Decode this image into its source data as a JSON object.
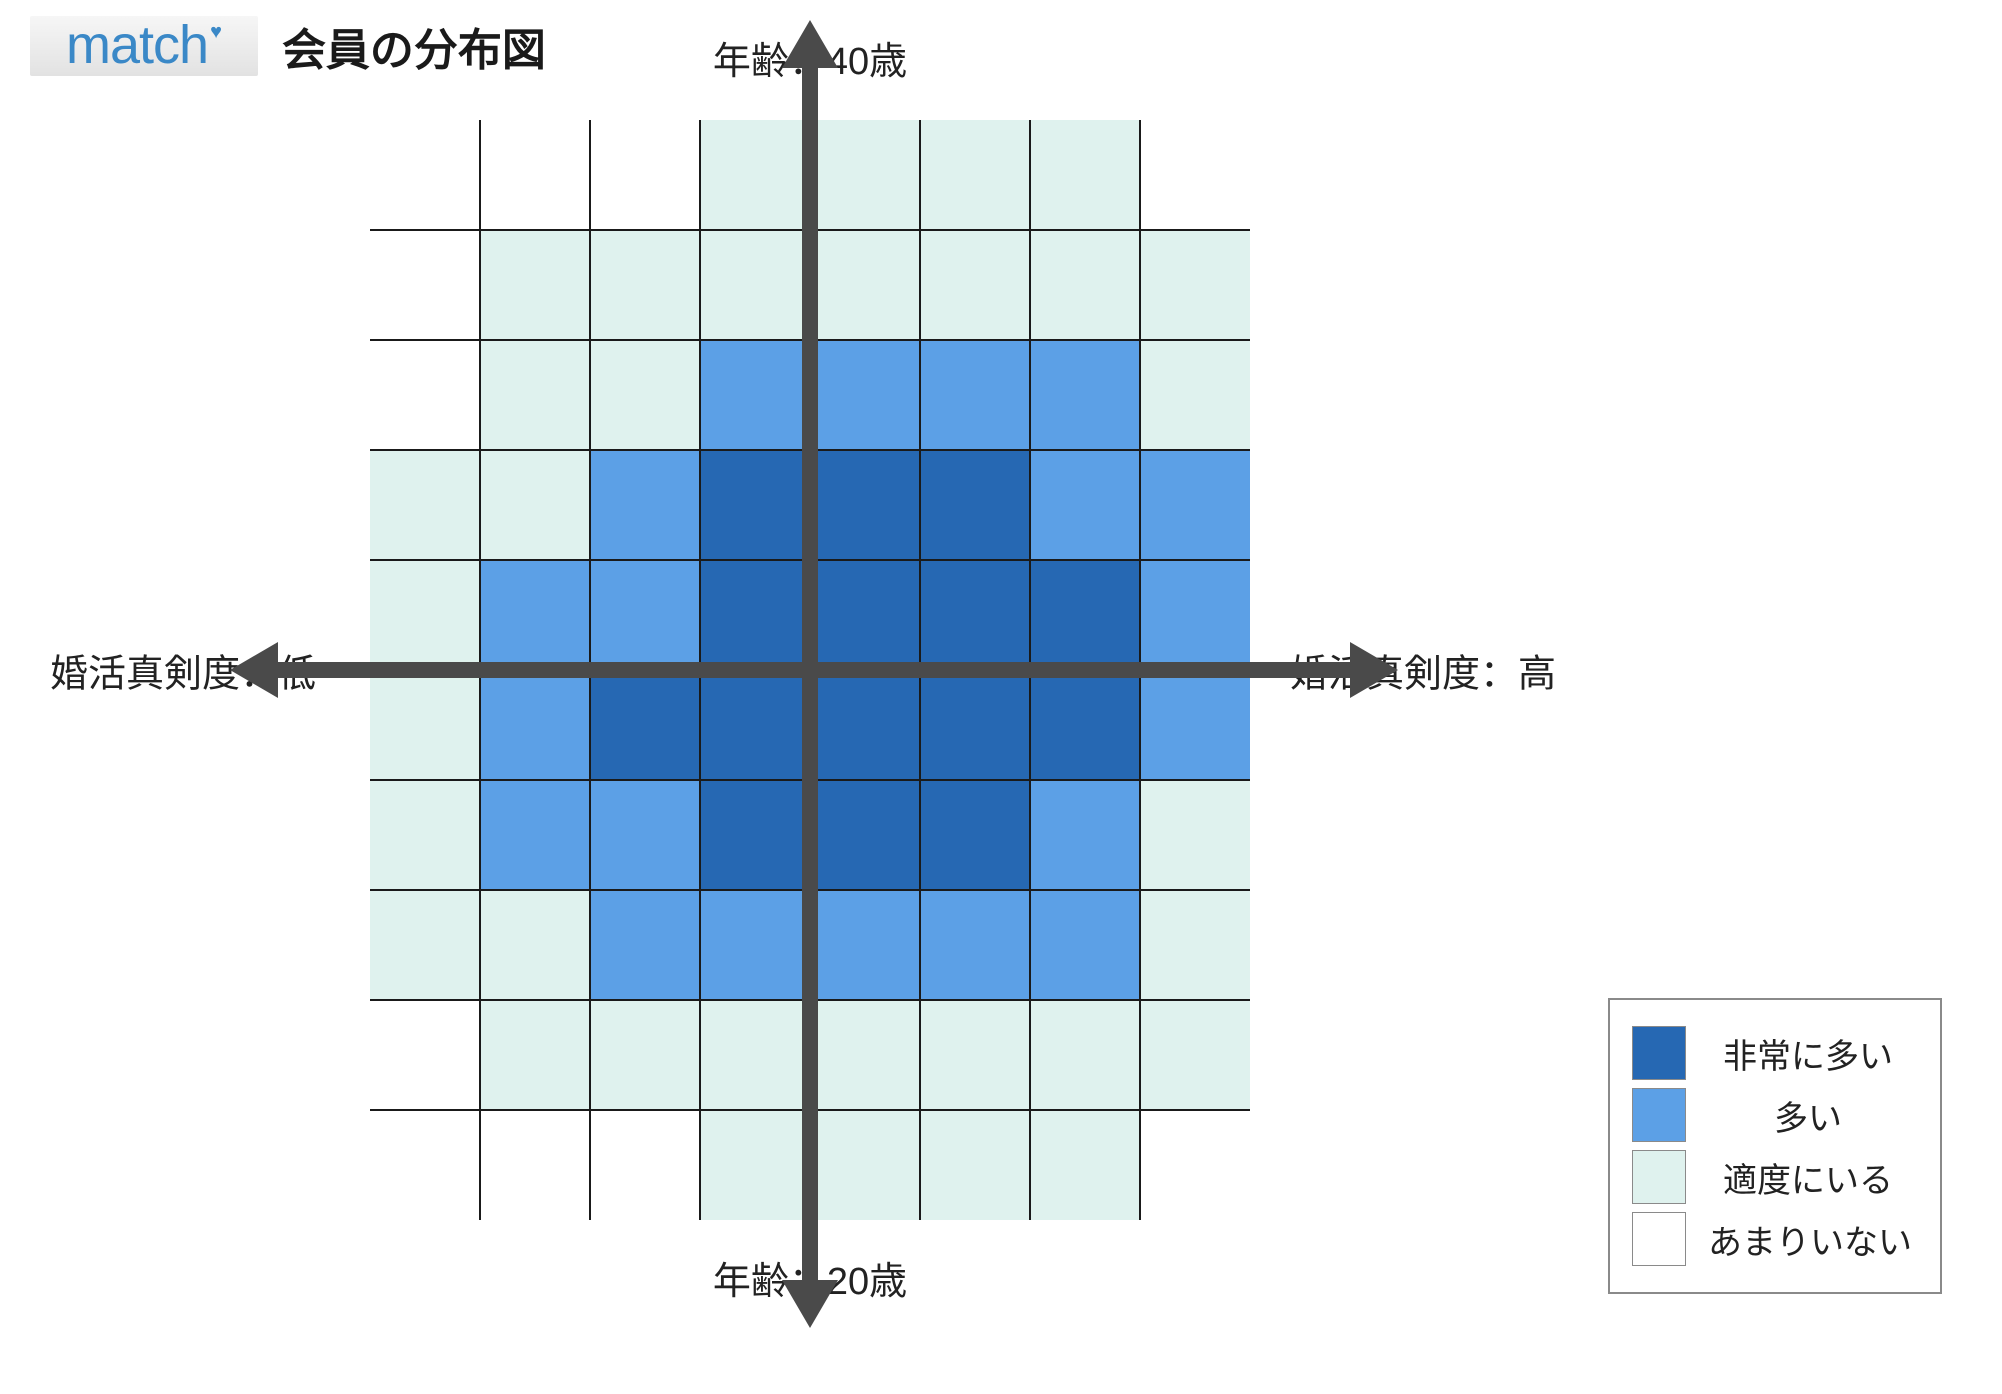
{
  "logo": {
    "text": "match",
    "color": "#3a88c7"
  },
  "title": "会員の分布図",
  "axes": {
    "top": "年齢：40歳",
    "bottom": "年齢：20歳",
    "left": "婚活真剣度：低",
    "right": "婚活真剣度：高"
  },
  "chart": {
    "type": "heatmap",
    "cols": 8,
    "rows": 10,
    "axis_color": "#4a4a4a",
    "axis_width": 16,
    "grid_line_color": "#1a1a1a",
    "background_color": "#ffffff",
    "level_colors": {
      "0": "#ffffff",
      "1": "#dff2ee",
      "2": "#5ca0e6",
      "3": "#2668b3"
    },
    "levels": [
      [
        0,
        0,
        0,
        1,
        1,
        1,
        1,
        0
      ],
      [
        0,
        1,
        1,
        1,
        1,
        1,
        1,
        1
      ],
      [
        0,
        1,
        1,
        2,
        2,
        2,
        2,
        1
      ],
      [
        1,
        1,
        2,
        3,
        3,
        3,
        2,
        2
      ],
      [
        1,
        2,
        2,
        3,
        3,
        3,
        3,
        2
      ],
      [
        1,
        2,
        3,
        3,
        3,
        3,
        3,
        2
      ],
      [
        1,
        2,
        2,
        3,
        3,
        3,
        2,
        1
      ],
      [
        1,
        1,
        2,
        2,
        2,
        2,
        2,
        1
      ],
      [
        0,
        1,
        1,
        1,
        1,
        1,
        1,
        1
      ],
      [
        0,
        0,
        0,
        1,
        1,
        1,
        1,
        0
      ]
    ]
  },
  "legend": {
    "border_color": "#8a8a8a",
    "items": [
      {
        "level": 3,
        "label": "非常に多い"
      },
      {
        "level": 2,
        "label": "多い"
      },
      {
        "level": 1,
        "label": "適度にいる"
      },
      {
        "level": 0,
        "label": "あまりいない"
      }
    ]
  }
}
